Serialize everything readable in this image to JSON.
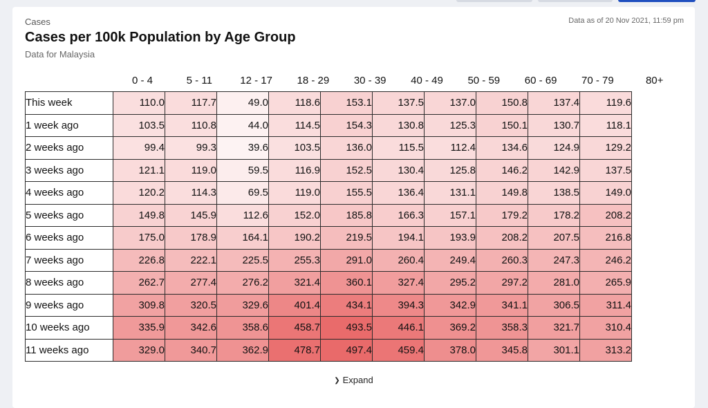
{
  "header": {
    "kicker": "Cases",
    "title": "Cases per 100k Population by Age Group",
    "subtitle": "Data for Malaysia",
    "as_of": "Data as of 20 Nov 2021, 11:59 pm"
  },
  "footer": {
    "expand_label": "Expand",
    "expand_icon": "chevron-down-icon"
  },
  "colors": {
    "min": "#ffffff",
    "max": "#e96a6a",
    "border": "#2b2b2b"
  },
  "chart_data": {
    "type": "heatmap",
    "title": "Cases per 100k Population by Age Group",
    "columns": [
      "0 - 4",
      "5 - 11",
      "12 - 17",
      "18 - 29",
      "30 - 39",
      "40 - 49",
      "50 - 59",
      "60 - 69",
      "70 - 79",
      "80+"
    ],
    "rows": [
      "This week",
      "1 week ago",
      "2 weeks ago",
      "3 weeks ago",
      "4 weeks ago",
      "5 weeks ago",
      "6 weeks ago",
      "7 weeks ago",
      "8 weeks ago",
      "9 weeks ago",
      "10 weeks ago",
      "11 weeks ago"
    ],
    "values": [
      [
        "110.0",
        "117.7",
        "49.0",
        "118.6",
        "153.1",
        "137.5",
        "137.0",
        "150.8",
        "137.4",
        "119.6"
      ],
      [
        "103.5",
        "110.8",
        "44.0",
        "114.5",
        "154.3",
        "130.8",
        "125.3",
        "150.1",
        "130.7",
        "118.1"
      ],
      [
        "99.4",
        "99.3",
        "39.6",
        "103.5",
        "136.0",
        "115.5",
        "112.4",
        "134.6",
        "124.9",
        "129.2"
      ],
      [
        "121.1",
        "119.0",
        "59.5",
        "116.9",
        "152.5",
        "130.4",
        "125.8",
        "146.2",
        "142.9",
        "137.5"
      ],
      [
        "120.2",
        "114.3",
        "69.5",
        "119.0",
        "155.5",
        "136.4",
        "131.1",
        "149.8",
        "138.5",
        "149.0"
      ],
      [
        "149.8",
        "145.9",
        "112.6",
        "152.0",
        "185.8",
        "166.3",
        "157.1",
        "179.2",
        "178.2",
        "208.2"
      ],
      [
        "175.0",
        "178.9",
        "164.1",
        "190.2",
        "219.5",
        "194.1",
        "193.9",
        "208.2",
        "207.5",
        "216.8"
      ],
      [
        "226.8",
        "222.1",
        "225.5",
        "255.3",
        "291.0",
        "260.4",
        "249.4",
        "260.3",
        "247.3",
        "246.2"
      ],
      [
        "262.7",
        "277.4",
        "276.2",
        "321.4",
        "360.1",
        "327.4",
        "295.2",
        "297.2",
        "281.0",
        "265.9"
      ],
      [
        "309.8",
        "320.5",
        "329.6",
        "401.4",
        "434.1",
        "394.3",
        "342.9",
        "341.1",
        "306.5",
        "311.4"
      ],
      [
        "335.9",
        "342.6",
        "358.6",
        "458.7",
        "493.5",
        "446.1",
        "369.2",
        "358.3",
        "321.7",
        "310.4"
      ],
      [
        "329.0",
        "340.7",
        "362.9",
        "478.7",
        "497.4",
        "459.4",
        "378.0",
        "345.8",
        "301.1",
        "313.2"
      ]
    ]
  }
}
